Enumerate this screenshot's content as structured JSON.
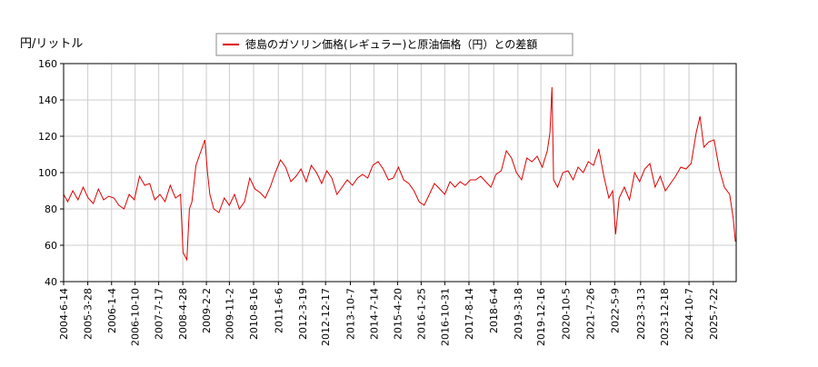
{
  "chart_data": {
    "type": "line",
    "legend_label": "徳島のガソリン価格(レギュラー)と原油価格（円）との差額",
    "y_axis_label": "円/リットル",
    "ylim": [
      40,
      160
    ],
    "yticks": [
      40,
      60,
      80,
      100,
      120,
      140,
      160
    ],
    "xlim": [
      "2004-6-14",
      "2026-4-20"
    ],
    "xticks": [
      "2004-6-14",
      "2005-3-28",
      "2006-1-4",
      "2006-10-10",
      "2007-7-17",
      "2008-4-28",
      "2009-2-2",
      "2009-11-2",
      "2010-8-16",
      "2011-6-6",
      "2012-3-19",
      "2012-12-17",
      "2013-10-7",
      "2014-7-14",
      "2015-4-20",
      "2016-1-25",
      "2016-10-31",
      "2017-8-14",
      "2018-6-4",
      "2019-3-18",
      "2019-12-16",
      "2020-10-5",
      "2021-7-26",
      "2022-5-9",
      "2023-3-13",
      "2023-12-18",
      "2024-10-7",
      "2025-7-22"
    ],
    "grid": true,
    "series": [
      {
        "name": "徳島のガソリン価格(レギュラー)と原油価格（円）との差額",
        "color": "#e00000",
        "x": [
          "2004-6-14",
          "2004-8-1",
          "2004-10-1",
          "2004-12-1",
          "2005-2-1",
          "2005-4-1",
          "2005-6-1",
          "2005-8-1",
          "2005-10-1",
          "2005-12-1",
          "2006-2-1",
          "2006-4-1",
          "2006-6-1",
          "2006-8-1",
          "2006-10-1",
          "2006-12-1",
          "2007-2-1",
          "2007-4-1",
          "2007-6-1",
          "2007-8-1",
          "2007-10-1",
          "2007-12-1",
          "2008-2-1",
          "2008-4-1",
          "2008-5-1",
          "2008-6-15",
          "2008-7-15",
          "2008-8-15",
          "2008-10-1",
          "2008-12-1",
          "2009-1-15",
          "2009-2-15",
          "2009-3-15",
          "2009-5-1",
          "2009-7-1",
          "2009-9-1",
          "2009-11-1",
          "2010-1-1",
          "2010-3-1",
          "2010-5-1",
          "2010-7-1",
          "2010-9-1",
          "2010-11-1",
          "2011-1-1",
          "2011-3-1",
          "2011-5-1",
          "2011-7-1",
          "2011-9-1",
          "2011-11-1",
          "2012-1-1",
          "2012-3-1",
          "2012-5-1",
          "2012-7-1",
          "2012-9-1",
          "2012-11-1",
          "2013-1-1",
          "2013-3-1",
          "2013-5-1",
          "2013-7-1",
          "2013-9-1",
          "2013-11-1",
          "2014-1-1",
          "2014-3-1",
          "2014-5-1",
          "2014-7-1",
          "2014-9-1",
          "2014-11-1",
          "2015-1-1",
          "2015-3-1",
          "2015-5-1",
          "2015-7-1",
          "2015-9-1",
          "2015-11-1",
          "2016-1-1",
          "2016-3-1",
          "2016-5-1",
          "2016-7-1",
          "2016-9-1",
          "2016-11-1",
          "2017-1-1",
          "2017-3-1",
          "2017-5-1",
          "2017-7-1",
          "2017-9-1",
          "2017-11-1",
          "2018-1-1",
          "2018-3-1",
          "2018-5-1",
          "2018-7-1",
          "2018-9-1",
          "2018-11-1",
          "2019-1-1",
          "2019-3-1",
          "2019-5-1",
          "2019-7-1",
          "2019-9-1",
          "2019-11-1",
          "2020-1-1",
          "2020-3-1",
          "2020-4-1",
          "2020-4-25",
          "2020-5-15",
          "2020-7-1",
          "2020-9-1",
          "2020-11-1",
          "2021-1-1",
          "2021-3-1",
          "2021-5-1",
          "2021-7-1",
          "2021-9-1",
          "2021-11-1",
          "2022-1-1",
          "2022-3-1",
          "2022-4-15",
          "2022-5-20",
          "2022-7-1",
          "2022-9-1",
          "2022-11-1",
          "2023-1-1",
          "2023-3-1",
          "2023-5-1",
          "2023-7-1",
          "2023-9-1",
          "2023-11-1",
          "2024-1-1",
          "2024-3-1",
          "2024-5-1",
          "2024-7-1",
          "2024-9-1",
          "2024-11-1",
          "2025-1-1",
          "2025-2-15",
          "2025-4-1",
          "2025-6-1",
          "2025-8-1",
          "2025-10-1",
          "2025-12-1",
          "2026-2-1",
          "2026-3-15",
          "2026-4-10"
        ],
        "values": [
          88,
          84,
          90,
          85,
          92,
          86,
          83,
          91,
          85,
          87,
          86,
          82,
          80,
          88,
          85,
          98,
          93,
          94,
          85,
          88,
          84,
          93,
          86,
          88,
          56,
          52,
          80,
          84,
          104,
          112,
          118,
          100,
          88,
          80,
          78,
          86,
          82,
          88,
          80,
          84,
          97,
          91,
          89,
          86,
          92,
          100,
          107,
          103,
          95,
          98,
          102,
          95,
          104,
          100,
          94,
          101,
          97,
          88,
          92,
          96,
          93,
          97,
          99,
          97,
          104,
          106,
          102,
          96,
          97,
          103,
          96,
          94,
          90,
          84,
          82,
          88,
          94,
          91,
          88,
          95,
          92,
          95,
          93,
          96,
          96,
          98,
          95,
          92,
          99,
          101,
          112,
          108,
          100,
          96,
          108,
          106,
          109,
          103,
          112,
          122,
          147,
          96,
          92,
          100,
          101,
          96,
          103,
          100,
          106,
          104,
          113,
          98,
          86,
          90,
          66,
          86,
          92,
          85,
          100,
          95,
          102,
          105,
          92,
          98,
          90,
          94,
          98,
          103,
          102,
          105,
          122,
          131,
          114,
          117,
          118,
          102,
          92,
          88,
          75,
          62
        ]
      }
    ]
  }
}
